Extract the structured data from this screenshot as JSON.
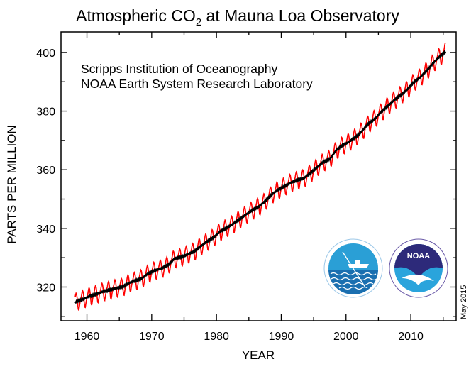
{
  "chart_data": {
    "type": "line",
    "title": "Atmospheric CO",
    "title_subscript": "2",
    "title_suffix": " at Mauna Loa Observatory",
    "xlabel": "YEAR",
    "ylabel": "PARTS PER MILLION",
    "xlim": [
      1956,
      2017
    ],
    "ylim": [
      308.5,
      407
    ],
    "xticks": [
      1960,
      1970,
      1980,
      1990,
      2000,
      2010
    ],
    "yticks": [
      320,
      340,
      360,
      380,
      400
    ],
    "grid": false,
    "annotations": [
      "Scripps Institution of Oceanography",
      "NOAA Earth System Research Laboratory"
    ],
    "date_note": "May 2015",
    "series": [
      {
        "kind": "monthly-mean",
        "color": "#ff0000",
        "start": 1958.2,
        "end": 2015.4,
        "seasonal_cycle_ppm": [
          0,
          0.7,
          1.4,
          2.5,
          3.0,
          2.4,
          0.9,
          -1.2,
          -3.0,
          -3.2,
          -2.0,
          -0.9
        ]
      },
      {
        "kind": "seasonally-corrected",
        "color": "#000000",
        "years": [
          1958,
          1959,
          1960,
          1961,
          1962,
          1963,
          1964,
          1965,
          1966,
          1967,
          1968,
          1969,
          1970,
          1971,
          1972,
          1973,
          1974,
          1975,
          1976,
          1977,
          1978,
          1979,
          1980,
          1981,
          1982,
          1983,
          1984,
          1985,
          1986,
          1987,
          1988,
          1989,
          1990,
          1991,
          1992,
          1993,
          1994,
          1995,
          1996,
          1997,
          1998,
          1999,
          2000,
          2001,
          2002,
          2003,
          2004,
          2005,
          2006,
          2007,
          2008,
          2009,
          2010,
          2011,
          2012,
          2013,
          2014,
          2015
        ],
        "values": [
          315.1,
          315.97,
          316.91,
          317.64,
          318.45,
          318.99,
          319.62,
          320.04,
          321.38,
          322.16,
          323.04,
          324.62,
          325.68,
          326.32,
          327.45,
          329.68,
          330.18,
          331.11,
          332.04,
          333.83,
          335.4,
          336.84,
          338.75,
          340.11,
          341.45,
          343.05,
          344.65,
          346.12,
          347.42,
          349.19,
          351.57,
          353.12,
          354.39,
          355.61,
          356.45,
          357.1,
          358.83,
          360.82,
          362.61,
          363.73,
          366.7,
          368.38,
          369.55,
          371.14,
          373.28,
          375.8,
          377.52,
          379.8,
          381.9,
          383.79,
          385.6,
          387.43,
          389.9,
          391.65,
          393.85,
          396.52,
          398.65,
          400.6
        ]
      }
    ]
  },
  "logos": {
    "scripps": "SCRIPPS INSTITUTION OF OCEANOGRAPHY · UCSD",
    "noaa": "NOAA",
    "noaa_ring": "NATIONAL OCEANIC AND ATMOSPHERIC ADMINISTRATION · U.S. DEPARTMENT OF COMMERCE"
  }
}
